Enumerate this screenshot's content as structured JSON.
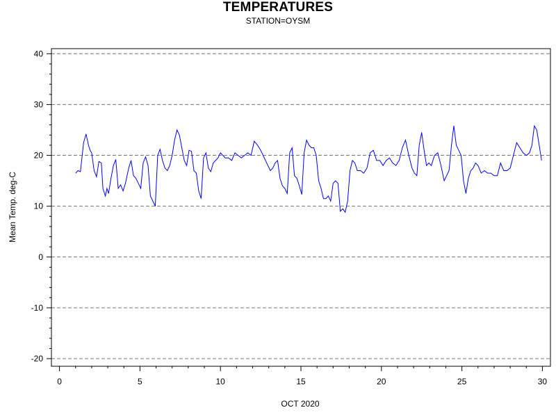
{
  "chart_data": {
    "type": "line",
    "title": "TEMPERATURES",
    "subtitle": "STATION=OYSM",
    "xlabel": "OCT 2020",
    "ylabel": "Mean Temp. deg-C",
    "xlim": [
      -0.5,
      30.5
    ],
    "ylim": [
      -21.5,
      41
    ],
    "xticks": [
      0,
      5,
      10,
      15,
      20,
      25,
      30
    ],
    "xtick_labels": [
      "0",
      "5",
      "10",
      "15",
      "20",
      "25",
      "30"
    ],
    "yticks": [
      -20,
      -10,
      0,
      10,
      20,
      30,
      40
    ],
    "ytick_labels": [
      "-20",
      "-10",
      "0",
      "10",
      "20",
      "30",
      "40"
    ],
    "grid": "horizontal dashed at major y ticks",
    "line_color": "#0000ff",
    "series": [
      {
        "x": [
          1.0,
          1.15,
          1.3,
          1.5,
          1.65,
          1.8,
          1.9,
          2.0,
          2.15,
          2.3,
          2.45,
          2.6,
          2.7,
          2.85,
          2.95,
          3.05,
          3.2,
          3.35,
          3.5,
          3.65,
          3.8,
          3.95,
          4.1,
          4.3,
          4.45,
          4.6,
          4.75,
          4.9,
          5.05,
          5.2,
          5.35,
          5.5,
          5.65,
          5.8,
          5.95,
          6.1,
          6.25,
          6.4,
          6.55,
          6.7,
          6.85,
          7.0,
          7.15,
          7.3,
          7.45,
          7.6,
          7.75,
          7.9,
          8.05,
          8.2,
          8.35,
          8.5,
          8.65,
          8.8,
          8.95,
          9.1,
          9.25,
          9.4,
          9.55,
          9.7,
          9.85,
          10.0,
          10.15,
          10.3,
          10.5,
          10.7,
          10.9,
          11.1,
          11.3,
          11.5,
          11.7,
          11.9,
          12.1,
          12.3,
          12.5,
          12.65,
          12.8,
          12.95,
          13.1,
          13.25,
          13.4,
          13.55,
          13.7,
          13.85,
          14.0,
          14.15,
          14.3,
          14.45,
          14.6,
          14.75,
          14.9,
          15.05,
          15.2,
          15.35,
          15.5,
          15.65,
          15.8,
          15.95,
          16.1,
          16.25,
          16.4,
          16.55,
          16.7,
          16.85,
          17.0,
          17.15,
          17.3,
          17.45,
          17.6,
          17.75,
          17.9,
          18.05,
          18.2,
          18.35,
          18.5,
          18.7,
          18.9,
          19.1,
          19.3,
          19.5,
          19.7,
          19.9,
          20.1,
          20.3,
          20.5,
          20.7,
          20.9,
          21.1,
          21.3,
          21.5,
          21.7,
          21.9,
          22.05,
          22.2,
          22.35,
          22.5,
          22.65,
          22.8,
          22.95,
          23.1,
          23.3,
          23.5,
          23.7,
          23.9,
          24.05,
          24.2,
          24.35,
          24.5,
          24.65,
          24.8,
          24.95,
          25.1,
          25.25,
          25.4,
          25.55,
          25.7,
          25.85,
          26.0,
          26.2,
          26.4,
          26.6,
          26.8,
          27.0,
          27.2,
          27.4,
          27.6,
          27.8,
          28.0,
          28.2,
          28.4,
          28.6,
          28.8,
          29.0,
          29.2,
          29.35,
          29.5,
          29.65,
          29.8,
          29.95
        ],
        "values": [
          16.5,
          17.0,
          16.8,
          22.5,
          24.2,
          22.0,
          21.0,
          20.5,
          17.0,
          15.8,
          18.8,
          18.5,
          13.5,
          12.0,
          13.5,
          12.5,
          15.5,
          18.0,
          19.2,
          13.5,
          14.2,
          13.0,
          14.5,
          17.5,
          19.0,
          16.0,
          15.5,
          14.5,
          13.5,
          18.5,
          19.7,
          18.0,
          12.0,
          11.0,
          10.0,
          20.0,
          21.2,
          19.0,
          17.5,
          17.0,
          18.0,
          20.0,
          23.0,
          25.0,
          24.0,
          21.5,
          19.0,
          18.0,
          21.0,
          20.8,
          17.0,
          16.5,
          13.0,
          11.5,
          19.5,
          20.5,
          17.5,
          16.8,
          18.5,
          19.0,
          19.5,
          20.5,
          20.0,
          19.5,
          19.5,
          19.0,
          20.5,
          20.0,
          19.5,
          20.0,
          20.5,
          20.0,
          22.8,
          22.0,
          21.0,
          20.0,
          19.0,
          18.0,
          17.0,
          17.5,
          18.5,
          19.0,
          15.5,
          14.0,
          13.5,
          12.5,
          20.5,
          21.5,
          16.0,
          15.5,
          14.0,
          12.3,
          20.5,
          23.0,
          22.0,
          21.5,
          21.5,
          20.0,
          15.0,
          13.5,
          11.5,
          11.5,
          12.0,
          11.0,
          14.5,
          15.0,
          14.5,
          9.0,
          9.5,
          8.8,
          11.0,
          17.0,
          19.0,
          18.5,
          17.0,
          17.0,
          16.5,
          17.5,
          20.5,
          21.0,
          19.0,
          19.0,
          18.0,
          19.0,
          19.5,
          18.5,
          18.0,
          19.0,
          21.5,
          23.0,
          20.0,
          17.5,
          16.5,
          16.0,
          22.0,
          24.5,
          21.0,
          18.0,
          18.5,
          18.0,
          20.0,
          20.5,
          18.0,
          15.0,
          16.0,
          17.0,
          22.0,
          25.8,
          22.0,
          21.0,
          20.0,
          15.0,
          12.5,
          15.5,
          17.0,
          17.5,
          18.5,
          18.0,
          16.5,
          17.0,
          16.5,
          16.5,
          16.0,
          16.0,
          18.5,
          17.0,
          17.0,
          17.5,
          20.0,
          22.5,
          21.5,
          20.5,
          20.0,
          20.5,
          22.0,
          25.8,
          25.0,
          22.0,
          19.0
        ]
      }
    ]
  }
}
